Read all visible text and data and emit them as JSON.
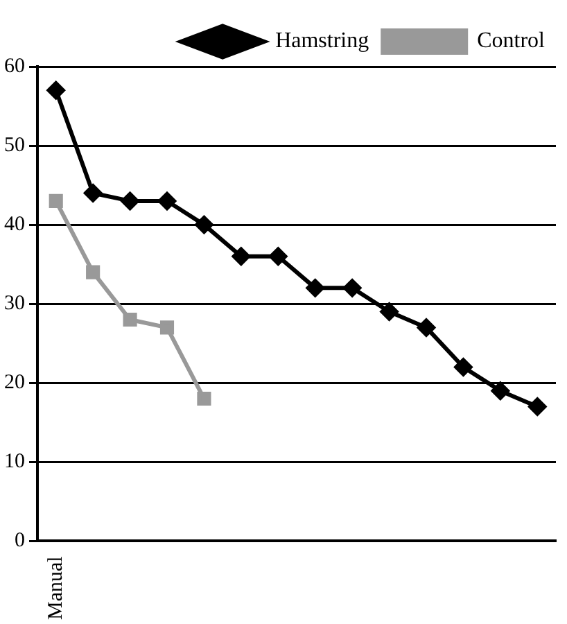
{
  "chart_data": {
    "type": "line",
    "categories": [
      "Manual",
      null,
      null,
      null,
      null,
      null,
      null,
      null,
      null,
      null,
      null,
      null,
      null,
      null
    ],
    "series": [
      {
        "name": "Hamstring",
        "color": "#000000",
        "marker": "diamond",
        "values": [
          57,
          44,
          43,
          43,
          40,
          36,
          36,
          32,
          32,
          29,
          27,
          22,
          19,
          17
        ]
      },
      {
        "name": "Control",
        "color": "#999999",
        "marker": "square",
        "values": [
          43,
          34,
          28,
          27,
          18,
          null,
          null,
          null,
          null,
          null,
          null,
          null,
          null,
          null
        ]
      }
    ],
    "ylim": [
      0,
      60
    ],
    "yticks": [
      0,
      10,
      20,
      30,
      40,
      50,
      60
    ],
    "grid": "y",
    "legend": "top right"
  }
}
